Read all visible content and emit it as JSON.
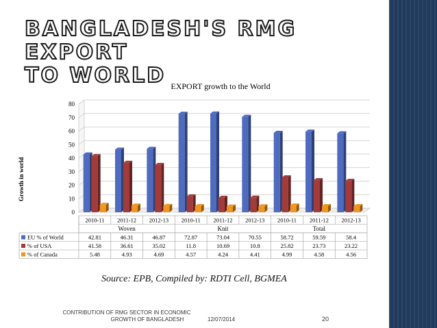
{
  "slide": {
    "title_line1": "BANGLADESH'S RMG EXPORT",
    "title_line2": "TO WORLD",
    "source": "Source: EPB, Compiled by: RDTI Cell, BGMEA",
    "footer_line1": "CONTRIBUTION OF RMG SECTOR IN ECONOMIC",
    "footer_line2": "GROWTH OF BANGLADESH",
    "footer_date": "12/07/2014",
    "page_number": "20",
    "strip_color": "#1f3a5c"
  },
  "chart_data": {
    "type": "bar",
    "title": "EXPORT growth to the World",
    "ylabel": "Growth in world",
    "xlabel": "",
    "ylim": [
      0,
      80
    ],
    "yticks": [
      0,
      10,
      20,
      30,
      40,
      50,
      60,
      70,
      80
    ],
    "grid": true,
    "categories": [
      "2010-11",
      "2011-12",
      "2012-13",
      "2010-11",
      "2011-12",
      "2012-13",
      "2010-11",
      "2011-12",
      "2012-13"
    ],
    "groups": [
      {
        "label": "Woven",
        "span": [
          0,
          2
        ]
      },
      {
        "label": "Knit",
        "span": [
          3,
          5
        ]
      },
      {
        "label": "Total",
        "span": [
          6,
          8
        ]
      }
    ],
    "series": [
      {
        "name": "EU % of World",
        "color": "#4f6bbf",
        "values": [
          42.81,
          46.31,
          46.87,
          72.87,
          73.04,
          70.55,
          58.72,
          59.59,
          58.4
        ],
        "labels": [
          "42.81",
          "46.31",
          "46.87",
          "72.87",
          "73.04",
          "70.55",
          "58.72",
          "59.59",
          "58.4"
        ]
      },
      {
        "name": "% of USA",
        "color": "#a33b3b",
        "values": [
          41.58,
          36.61,
          35.02,
          11.8,
          10.69,
          10.8,
          25.82,
          23.73,
          23.22
        ],
        "labels": [
          "41.58",
          "36.61",
          "35.02",
          "11.8",
          "10.69",
          "10.8",
          "25.82",
          "23.73",
          "23.22"
        ]
      },
      {
        "name": "% of Canada",
        "color": "#f0951e",
        "values": [
          5.48,
          4.93,
          4.69,
          4.57,
          4.24,
          4.41,
          4.99,
          4.58,
          4.56
        ],
        "labels": [
          "5.48",
          "4.93",
          "4.69",
          "4.57",
          "4.24",
          "4.41",
          "4.99",
          "4.58",
          "4.56"
        ]
      }
    ]
  }
}
